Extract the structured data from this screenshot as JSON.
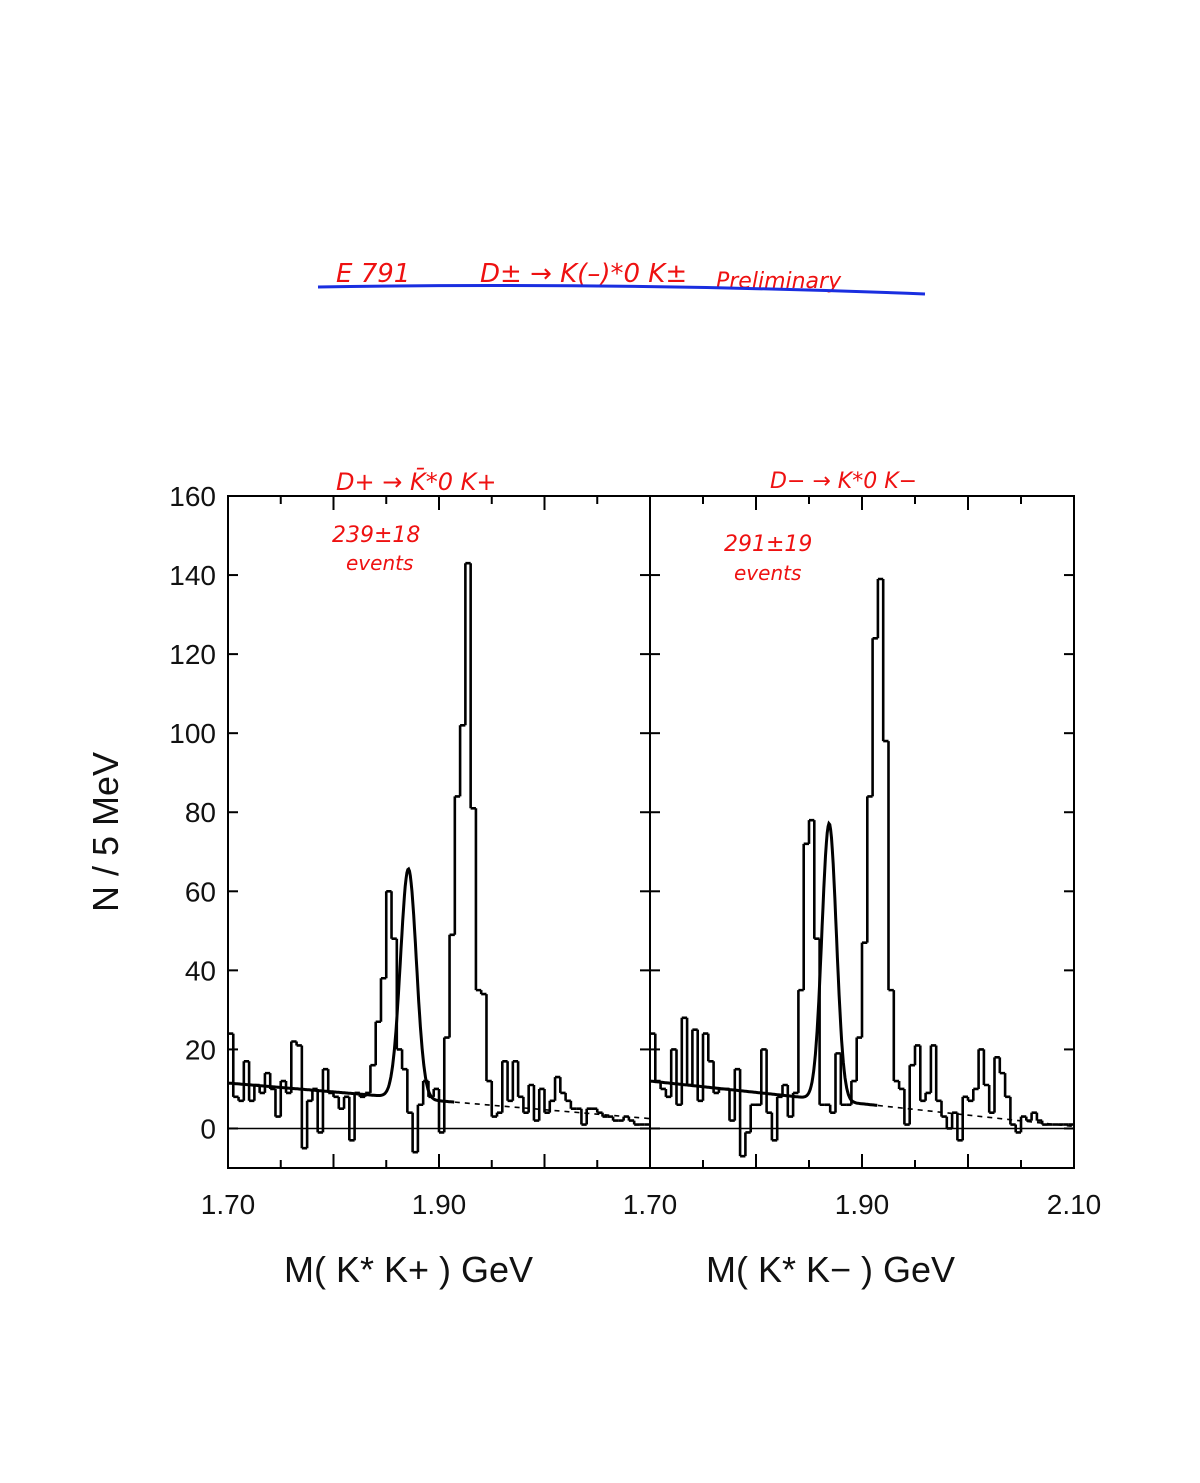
{
  "header": {
    "experiment": "E 791",
    "decay": "D± → K(–)*0 K±",
    "status": "Preliminary",
    "underline_color": "#1a2ee0",
    "annotation_color": "#ee1111"
  },
  "chart_data": [
    {
      "type": "histogram",
      "panel_title": "D+ → K̄*0 K+",
      "annotation_count": "239±18",
      "annotation_unit": "events",
      "xlabel": "M( K* K+ )   GeV",
      "ylabel": "N / 5 MeV",
      "xlim": [
        1.7,
        2.1
      ],
      "ylim": [
        -10,
        160
      ],
      "bin_width": 0.005,
      "x_ticks": [
        "1.70",
        "1.90"
      ],
      "y_ticks": [
        "0",
        "20",
        "40",
        "60",
        "80",
        "100",
        "120",
        "140",
        "160"
      ],
      "counts": [
        24,
        8,
        7,
        17,
        7,
        11,
        9,
        14,
        10,
        3,
        12,
        9,
        22,
        21,
        -5,
        7,
        10,
        -1,
        15,
        9,
        8,
        5,
        8,
        -3,
        9,
        8,
        9,
        16,
        27,
        38,
        60,
        48,
        20,
        15,
        4,
        -6,
        6,
        12,
        8,
        10,
        -1,
        23,
        49,
        84,
        102,
        143,
        81,
        35,
        34,
        12,
        3,
        4,
        17,
        7,
        17,
        8,
        4,
        11,
        2,
        10,
        4,
        7,
        13,
        9,
        7,
        5,
        5,
        1,
        5,
        5,
        4,
        3,
        3,
        2,
        2,
        3,
        2,
        1,
        1,
        1
      ],
      "fit": {
        "background_start": 11.5,
        "background_end": 2.5,
        "peak_center": 1.871,
        "peak_height": 58,
        "peak_sigma": 0.0075,
        "fit_end": 1.915
      }
    },
    {
      "type": "histogram",
      "panel_title": "D− → K*0 K−",
      "annotation_count": "291±19",
      "annotation_unit": "events",
      "xlabel": "M( K* K− )   GeV",
      "ylabel": "",
      "xlim": [
        1.7,
        2.1
      ],
      "ylim": [
        -10,
        160
      ],
      "bin_width": 0.005,
      "x_ticks": [
        "1.70",
        "1.90",
        "2.10"
      ],
      "y_ticks": [],
      "counts": [
        24,
        12,
        10,
        8,
        20,
        6,
        28,
        11,
        25,
        7,
        24,
        17,
        9,
        10,
        10,
        2,
        15,
        -7,
        -1,
        6,
        6,
        20,
        4,
        -3,
        8,
        11,
        3,
        9,
        35,
        72,
        78,
        48,
        6,
        6,
        4,
        19,
        6,
        6,
        12,
        23,
        47,
        84,
        124,
        139,
        98,
        35,
        12,
        10,
        1,
        16,
        21,
        7,
        9,
        21,
        7,
        3,
        0,
        4,
        -3,
        8,
        7,
        10,
        20,
        11,
        4,
        18,
        14,
        8,
        1,
        -1,
        3,
        2,
        4,
        2,
        1,
        1,
        1,
        1,
        1,
        1
      ],
      "fit": {
        "background_start": 12,
        "background_end": 0.5,
        "peak_center": 1.869,
        "peak_height": 70,
        "peak_sigma": 0.0068,
        "fit_end": 1.915
      }
    }
  ]
}
